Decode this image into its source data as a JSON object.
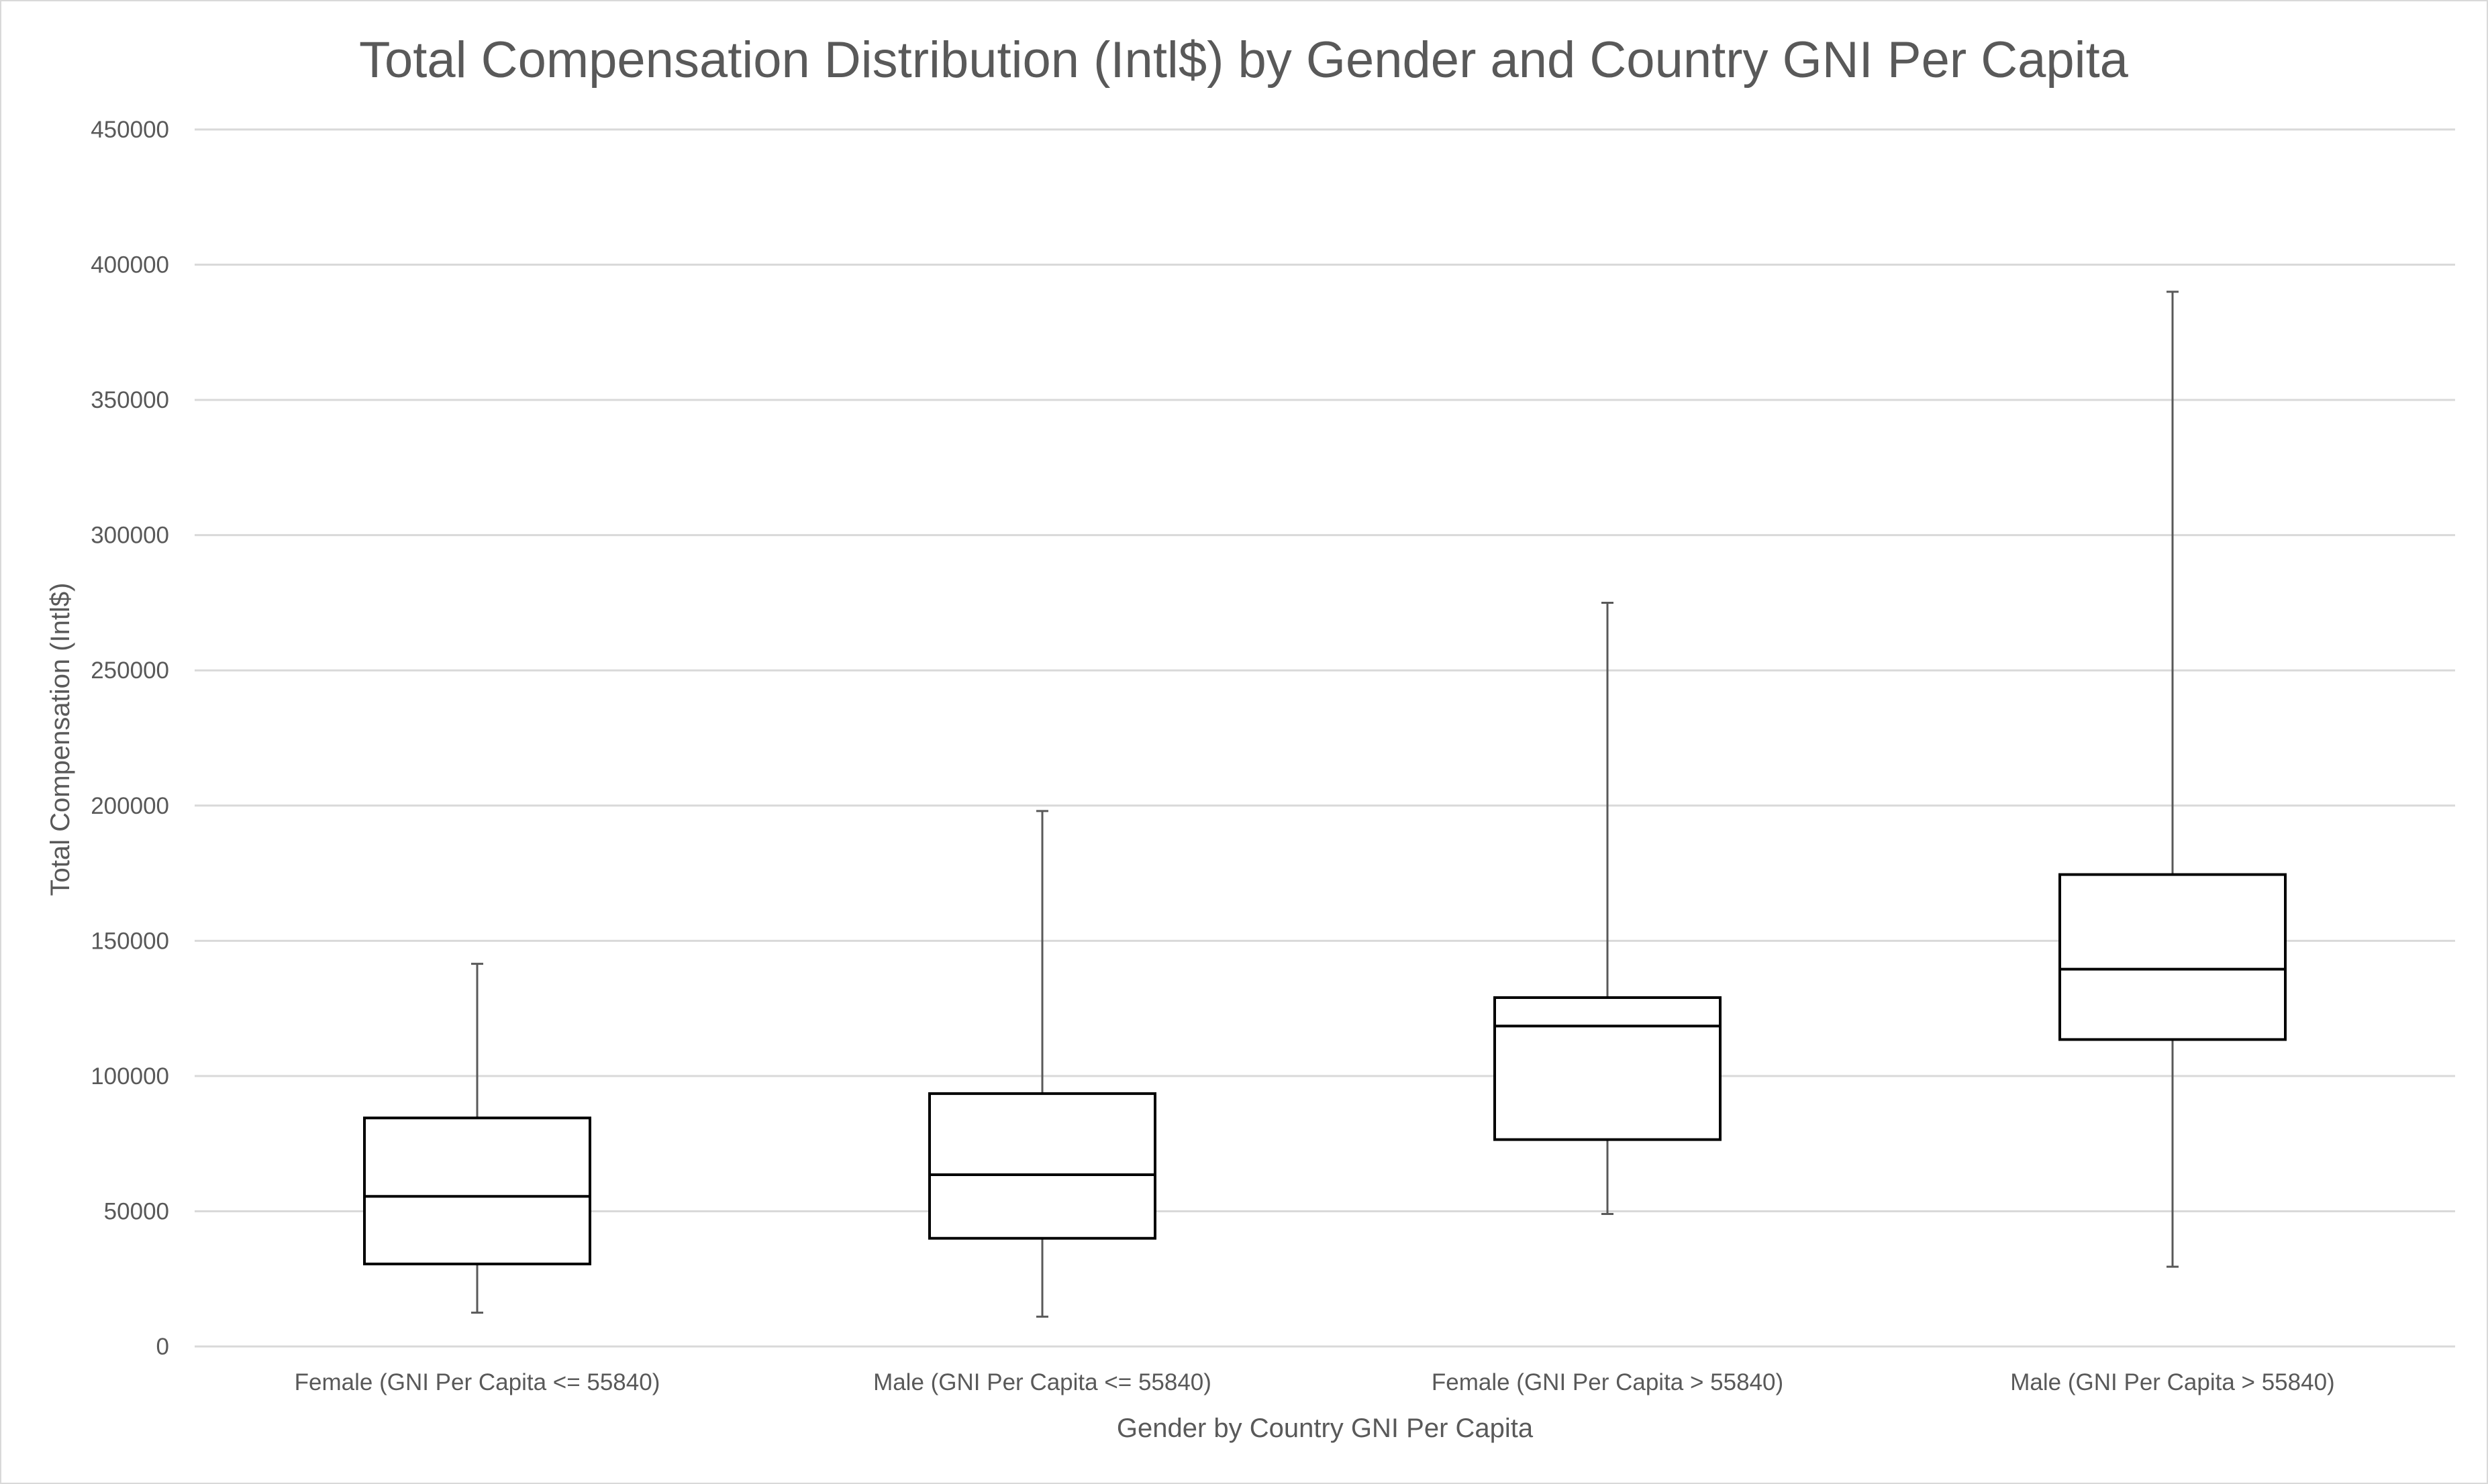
{
  "chart_data": {
    "type": "box",
    "title": "Total Compensation Distribution (Intl$) by Gender and Country GNI Per Capita",
    "xlabel": "Gender by Country GNI Per Capita",
    "ylabel": "Total Compensation (Intl$)",
    "ylim": [
      0,
      450000
    ],
    "yticks": [
      0,
      50000,
      100000,
      150000,
      200000,
      250000,
      300000,
      350000,
      400000,
      450000
    ],
    "grid": true,
    "categories": [
      "Female (GNI Per Capita <= 55840)",
      "Male (GNI Per Capita <= 55840)",
      "Female (GNI Per Capita > 55840)",
      "Male (GNI Per Capita > 55840)"
    ],
    "boxes": [
      {
        "min": 12500,
        "q1": 30500,
        "median": 55500,
        "q3": 84500,
        "max": 141500
      },
      {
        "min": 11000,
        "q1": 40000,
        "median": 63500,
        "q3": 93500,
        "max": 198000
      },
      {
        "min": 49000,
        "q1": 76500,
        "median": 118500,
        "q3": 129000,
        "max": 275000
      },
      {
        "min": 29500,
        "q1": 113500,
        "median": 139500,
        "q3": 174500,
        "max": 390000
      }
    ]
  }
}
